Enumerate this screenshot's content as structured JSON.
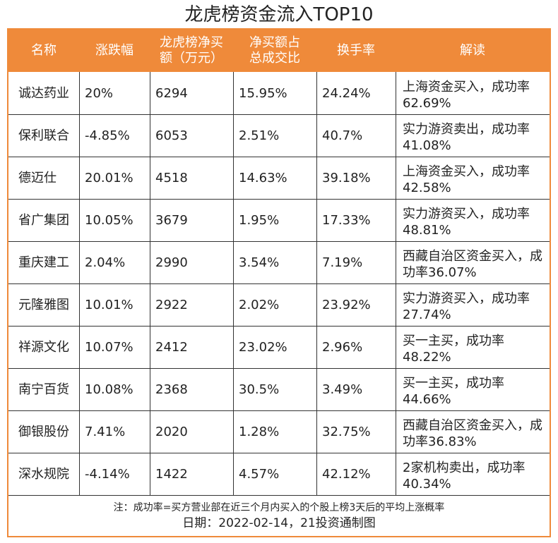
{
  "title": "龙虎榜资金流入TOP10",
  "headers": [
    "名称",
    "涨跌幅",
    "龙虎榜净买额（万元）",
    "净买额占总成交比",
    "换手率",
    "解读"
  ],
  "rows": [
    {
      "name": "诚达药业",
      "change": "20%",
      "net_buy": "6294",
      "ratio": "15.95%",
      "turnover": "24.24%",
      "note": "上海资金买入，成功率62.69%"
    },
    {
      "name": "保利联合",
      "change": "-4.85%",
      "net_buy": "6053",
      "ratio": "2.51%",
      "turnover": "40.7%",
      "note": "实力游资卖出，成功率41.08%"
    },
    {
      "name": "德迈仕",
      "change": "20.01%",
      "net_buy": "4518",
      "ratio": "14.63%",
      "turnover": "39.18%",
      "note": "上海资金买入，成功率42.58%"
    },
    {
      "name": "省广集团",
      "change": "10.05%",
      "net_buy": "3679",
      "ratio": "1.95%",
      "turnover": "17.33%",
      "note": "实力游资买入，成功率48.81%"
    },
    {
      "name": "重庆建工",
      "change": "2.04%",
      "net_buy": "2990",
      "ratio": "3.54%",
      "turnover": "7.19%",
      "note": "西藏自治区资金买入，成功率36.07%"
    },
    {
      "name": "元隆雅图",
      "change": "10.01%",
      "net_buy": "2922",
      "ratio": "2.02%",
      "turnover": "23.92%",
      "note": "实力游资买入，成功率27.74%"
    },
    {
      "name": "祥源文化",
      "change": "10.07%",
      "net_buy": "2412",
      "ratio": "23.02%",
      "turnover": "2.96%",
      "note": "买一主买，成功率48.22%"
    },
    {
      "name": "南宁百货",
      "change": "10.08%",
      "net_buy": "2368",
      "ratio": "30.5%",
      "turnover": "3.49%",
      "note": "买一主买，成功率44.66%"
    },
    {
      "name": "御银股份",
      "change": "7.41%",
      "net_buy": "2020",
      "ratio": "1.28%",
      "turnover": "32.75%",
      "note": "西藏自治区资金买入，成功率36.83%"
    },
    {
      "name": "深水规院",
      "change": "-4.14%",
      "net_buy": "1422",
      "ratio": "4.57%",
      "turnover": "42.12%",
      "note": "2家机构卖出，成功率40.34%"
    }
  ],
  "footnote": "注：成功率=买方营业部在近三个月内买入的个股上榜3天后的平均上涨概率",
  "date_line": "日期：2022-02-14，21投资通制图",
  "colors": {
    "accent": "#ef8a3a",
    "border": "#333333"
  }
}
